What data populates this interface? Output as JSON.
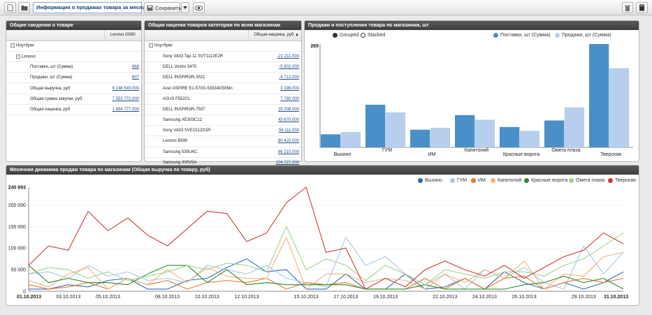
{
  "toolbar": {
    "title": "Информация о продажах товара за месяц",
    "save_label": "Сохранить"
  },
  "info_panel": {
    "header": "Общие сведения о товаре",
    "column": "Lenovo G580",
    "group": "Ноутбуки",
    "subgroup": "Lenovo",
    "rows": [
      {
        "label": "Поставки, шт (Сумма)",
        "value": "666"
      },
      {
        "label": "Продажи, шт (Сумма)",
        "value": "607"
      },
      {
        "label": "Общая выручка, руб",
        "value": "9 248 549.000"
      },
      {
        "label": "Общая сумма закупки, руб",
        "value": "7 553 772.000"
      },
      {
        "label": "Общая наценка, руб",
        "value": "1 694 777.000"
      }
    ]
  },
  "markup_panel": {
    "header": "Общая наценка товаров категории по всем магазинам",
    "column": "Общая наценка, руб",
    "group": "Ноутбуки",
    "rows": [
      {
        "label": "Sony VAIO Tap 11 SVT1122E2R",
        "value": "-21 211.000"
      },
      {
        "label": "DELL Vostro 5470",
        "value": "-5 802.000"
      },
      {
        "label": "DELL INSPIRON 3521",
        "value": "-4 712.000"
      },
      {
        "label": "Acer ASPIRE E1-570G-53334G50Mn",
        "value": "3 198.000"
      },
      {
        "label": "ASUS F552CL",
        "value": "7 780.000"
      },
      {
        "label": "DELL INSPIRON 7537",
        "value": "29 208.000"
      },
      {
        "label": "Samsung XE303C12",
        "value": "43 670.000"
      },
      {
        "label": "Sony VAIO SVE1512D1R",
        "value": "56 111.000"
      },
      {
        "label": "Lenovo B590",
        "value": "80 420.000"
      },
      {
        "label": "Samsung 535U4C",
        "value": "86 210.000"
      },
      {
        "label": "Samsung 300V5A",
        "value": "104 727.000"
      }
    ]
  },
  "bar_panel": {
    "header": "Продажи и поступления товара по магазинам, шт",
    "mode_grouped": "Grouped",
    "mode_stacked": "Stacked"
  },
  "line_panel": {
    "header": "Месячная динамика продаж товара по магазинам (Общая выручка по товару, руб)"
  },
  "colors": {
    "supply": "#4a90c8",
    "sales": "#b7cfec",
    "accent": "#1a3f6f"
  },
  "chart_data": [
    {
      "type": "bar",
      "title": "Продажи и поступления товара по магазинам, шт",
      "categories": [
        "Выхино",
        "ГУМ",
        "ИМ",
        "Капитолий",
        "Красные ворота",
        "Омега плаза",
        "Тверская"
      ],
      "series": [
        {
          "name": "Поставки, шт (Сумма)",
          "values": [
            34,
            111,
            46,
            84,
            53,
            70,
            269
          ],
          "color": "#4a90c8"
        },
        {
          "name": "Продажи, шт (Сумма)",
          "values": [
            40,
            91,
            51,
            72,
            43,
            104,
            206
          ],
          "color": "#b7cfec"
        }
      ],
      "ylim": [
        0,
        269
      ],
      "y_top_label": "269",
      "legend": "top"
    },
    {
      "type": "line",
      "title": "Месячная динамика продаж товара по магазинам (Общая выручка по товару, руб)",
      "x": [
        "01.10.2013",
        "02.10.2013",
        "03.10.2013",
        "04.10.2013",
        "05.10.2013",
        "06.10.2013",
        "07.10.2013",
        "08.10.2013",
        "09.10.2013",
        "10.10.2013",
        "11.10.2013",
        "12.10.2013",
        "13.10.2013",
        "14.10.2013",
        "15.10.2013",
        "16.10.2013",
        "17.10.2013",
        "18.10.2013",
        "19.10.2013",
        "20.10.2013",
        "21.10.2013",
        "22.10.2013",
        "23.10.2013",
        "24.10.2013",
        "25.10.2013",
        "26.10.2013",
        "27.10.2013",
        "28.10.2013",
        "29.10.2013",
        "30.10.2013",
        "31.10.2013"
      ],
      "x_ticks": [
        "01.10.2013",
        "03.10.2013",
        "05.10.2013",
        "08.10.2013",
        "10.10.2013",
        "12.10.2013",
        "15.10.2013",
        "17.10.2013",
        "19.10.2013",
        "22.10.2013",
        "24.10.2013",
        "26.10.2013",
        "29.10.2013",
        "31.10.2013"
      ],
      "y_ticks": [
        "0",
        "50 000",
        "100 000",
        "150 000",
        "200 000",
        "240 993"
      ],
      "ylim": [
        0,
        240993
      ],
      "legend": "top-right",
      "series": [
        {
          "name": "Выхино",
          "color": "#2f6db5",
          "values": [
            5000,
            5000,
            15000,
            10000,
            25000,
            30000,
            5000,
            5000,
            25000,
            30000,
            55000,
            75000,
            45000,
            50000,
            5000,
            5000,
            40000,
            5000,
            5000,
            40000,
            5000,
            10000,
            30000,
            5000,
            45000,
            20000,
            5000,
            20000,
            5000,
            20000,
            45000
          ]
        },
        {
          "name": "ГУМ",
          "color": "#a9c8e8",
          "values": [
            40000,
            45000,
            30000,
            60000,
            35000,
            45000,
            25000,
            30000,
            20000,
            60000,
            50000,
            40000,
            60000,
            30000,
            20000,
            10000,
            125000,
            60000,
            80000,
            40000,
            15000,
            40000,
            5000,
            50000,
            30000,
            55000,
            20000,
            5000,
            105000,
            40000,
            90000
          ]
        },
        {
          "name": "ИМ",
          "color": "#e8772e",
          "values": [
            15000,
            5000,
            10000,
            20000,
            5000,
            30000,
            15000,
            25000,
            5000,
            20000,
            25000,
            20000,
            30000,
            5000,
            20000,
            15000,
            20000,
            5000,
            5000,
            5000,
            30000,
            5000,
            30000,
            5000,
            30000,
            35000,
            5000,
            20000,
            30000,
            20000,
            30000
          ]
        },
        {
          "name": "Капитолий",
          "color": "#f4b37b",
          "values": [
            25000,
            10000,
            40000,
            55000,
            5000,
            30000,
            15000,
            50000,
            20000,
            55000,
            35000,
            30000,
            30000,
            125000,
            5000,
            40000,
            40000,
            20000,
            30000,
            25000,
            5000,
            40000,
            20000,
            50000,
            30000,
            70000,
            5000,
            40000,
            35000,
            80000,
            90000
          ]
        },
        {
          "name": "Красные ворота",
          "color": "#2e8b2e",
          "values": [
            60000,
            20000,
            30000,
            20000,
            20000,
            15000,
            40000,
            60000,
            60000,
            20000,
            50000,
            15000,
            20000,
            15000,
            15000,
            15000,
            15000,
            5000,
            5000,
            5000,
            15000,
            5000,
            5000,
            5000,
            5000,
            15000,
            20000,
            35000,
            20000,
            30000,
            5000
          ]
        },
        {
          "name": "Омега плаза",
          "color": "#9ed48c",
          "values": [
            40000,
            55000,
            50000,
            30000,
            45000,
            25000,
            35000,
            45000,
            60000,
            50000,
            65000,
            60000,
            45000,
            150000,
            50000,
            75000,
            60000,
            25000,
            60000,
            40000,
            15000,
            50000,
            40000,
            30000,
            45000,
            45000,
            35000,
            60000,
            75000,
            105000,
            135000
          ]
        },
        {
          "name": "Тверская",
          "color": "#cc3b3b",
          "values": [
            60000,
            105000,
            95000,
            185000,
            140000,
            170000,
            130000,
            105000,
            145000,
            185000,
            180000,
            115000,
            135000,
            205000,
            240993,
            90000,
            100000,
            5000,
            30000,
            10000,
            50000,
            70000,
            50000,
            35000,
            60000,
            30000,
            55000,
            80000,
            95000,
            135000,
            110000
          ]
        }
      ]
    }
  ]
}
